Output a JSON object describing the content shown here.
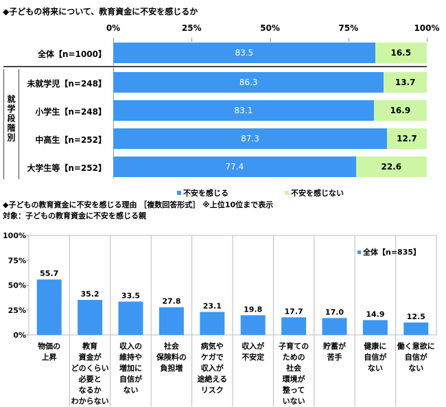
{
  "chart_data": [
    {
      "type": "bar",
      "orientation": "horizontal-stacked",
      "title": "◆子どもの将来について、教育資金に不安を感じるか",
      "xlim": [
        0,
        100
      ],
      "ticks": [
        "0%",
        "25%",
        "50%",
        "75%",
        "100%"
      ],
      "group_label": "就学段階別",
      "categories": [
        "全体【n=1000】",
        "未就学児【n=248】",
        "小学生【n=248】",
        "中高生【n=252】",
        "大学生等【n=252】"
      ],
      "series": [
        {
          "name": "不安を感じる",
          "color": "#3d97f2",
          "values": [
            83.5,
            86.3,
            83.1,
            87.3,
            77.4
          ]
        },
        {
          "name": "不安を感じない",
          "color": "#ccf6a4",
          "values": [
            16.5,
            13.7,
            16.9,
            12.7,
            22.6
          ]
        }
      ],
      "legend": "bottom"
    },
    {
      "type": "bar",
      "title": "◆子どもの教育資金に不安を感じる理由 ［複数回答形式］ ※上位10位まで表示",
      "subtitle": "対象：子どもの教育資金に不安を感じる親",
      "ylim": [
        0,
        100
      ],
      "ticks": [
        "0%",
        "25%",
        "50%",
        "75%",
        "100%"
      ],
      "categories": [
        "物価の\n上昇",
        "教育\n資金が\nどのくらい\n必要と\nなるか\nわからない",
        "収入の\n維持や\n増加に\n自信が\nない",
        "社会\n保険料の\n負担増",
        "病気や\nケガで\n収入が\n途絶える\nリスク",
        "収入が\n不安定",
        "子育ての\nための\n社会\n環境が\n整って\nいない",
        "貯蓄が\n苦手",
        "健康に\n自信が\nない",
        "働く意欲に\n自信が\nない"
      ],
      "series": [
        {
          "name": "全体【n=835】",
          "color": "#3d97f2",
          "values": [
            55.7,
            35.2,
            33.5,
            27.8,
            23.1,
            19.8,
            17.7,
            17.0,
            14.9,
            12.5
          ]
        }
      ],
      "legend": "top-right"
    }
  ]
}
